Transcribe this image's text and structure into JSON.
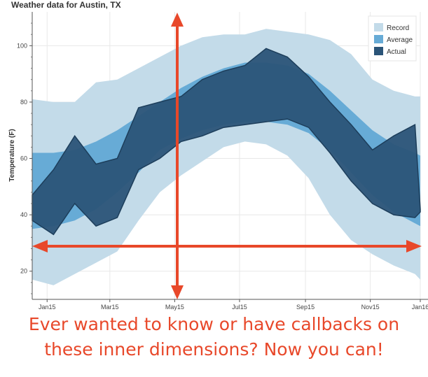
{
  "chart_data": {
    "type": "area",
    "title": "Weather data for Austin, TX",
    "xlabel": "",
    "ylabel": "Temperature (F)",
    "x_tick_labels": [
      "Jan15",
      "Mar15",
      "May15",
      "Jul15",
      "Sep15",
      "Nov15",
      "Jan16"
    ],
    "y_ticks": [
      20,
      40,
      60,
      80,
      100
    ],
    "ylim": [
      10,
      112
    ],
    "xlim": [
      "2015-01-01",
      "2016-01-01"
    ],
    "grid": true,
    "legend": {
      "placement": "top-right",
      "entries": [
        "Record",
        "Average",
        "Actual"
      ]
    },
    "x": [
      "2015-01-01",
      "2015-01-21",
      "2015-02-10",
      "2015-03-02",
      "2015-03-22",
      "2015-04-11",
      "2015-05-01",
      "2015-05-21",
      "2015-06-10",
      "2015-06-30",
      "2015-07-20",
      "2015-08-09",
      "2015-08-29",
      "2015-09-18",
      "2015-10-08",
      "2015-10-28",
      "2015-11-17",
      "2015-12-07",
      "2015-12-27",
      "2016-01-01"
    ],
    "series": [
      {
        "name": "Record",
        "low": [
          17,
          15,
          19,
          23,
          27,
          38,
          48,
          54,
          59,
          64,
          66,
          65,
          61,
          53,
          40,
          31,
          26,
          22,
          19,
          17
        ],
        "high": [
          81,
          80,
          80,
          87,
          88,
          92,
          96,
          100,
          103,
          104,
          104,
          106,
          105,
          104,
          102,
          97,
          88,
          84,
          82,
          82
        ]
      },
      {
        "name": "Average",
        "low": [
          35,
          36,
          38,
          42,
          48,
          55,
          63,
          67,
          70,
          72,
          73,
          73,
          72,
          69,
          63,
          55,
          47,
          41,
          37,
          36
        ],
        "high": [
          62,
          62,
          63,
          66,
          70,
          75,
          80,
          85,
          89,
          92,
          94,
          94,
          93,
          90,
          84,
          77,
          70,
          65,
          62,
          61
        ]
      },
      {
        "name": "Actual",
        "low": [
          38,
          33,
          44,
          36,
          39,
          56,
          60,
          66,
          68,
          71,
          72,
          73,
          74,
          71,
          62,
          52,
          44,
          40,
          39,
          41
        ],
        "high": [
          47,
          56,
          68,
          58,
          60,
          78,
          80,
          82,
          88,
          91,
          93,
          99,
          96,
          89,
          80,
          72,
          63,
          68,
          72,
          42
        ]
      }
    ],
    "colors": {
      "Record": "#c3dbe9",
      "Average": "#67abd6",
      "Actual": "#2b5478",
      "Actual_edge": "#1d3e5b"
    }
  },
  "annotation": {
    "text_line1": "Ever wanted to know or have callbacks on",
    "text_line2": "these inner dimensions? Now you can!",
    "color": "#e8482a"
  }
}
